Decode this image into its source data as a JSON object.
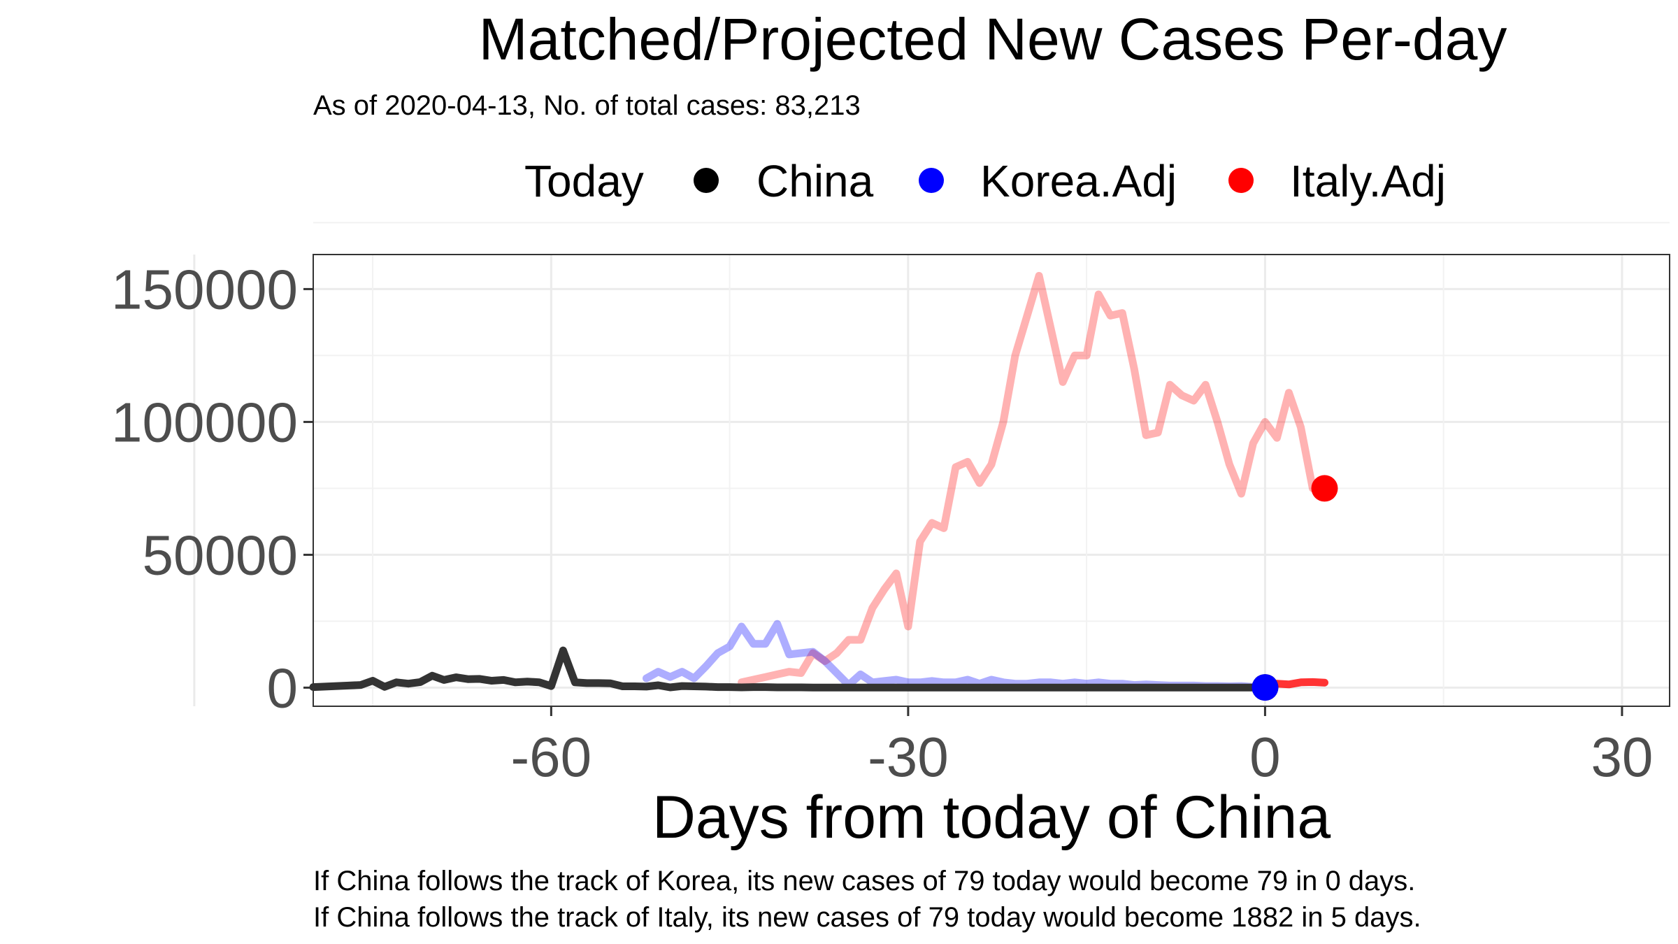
{
  "chart_data": {
    "type": "line",
    "title": "Matched/Projected New Cases Per-day",
    "subtitle": "As of 2020-04-13, No. of total cases: 83,213",
    "xlabel": "Days from today of China",
    "ylabel": "",
    "xlim": [
      -80,
      34
    ],
    "ylim": [
      -7000,
      163000
    ],
    "x_ticks": [
      -60,
      -30,
      0,
      30
    ],
    "x_tick_labels": [
      "-60",
      "-30",
      "0",
      "30"
    ],
    "y_ticks": [
      0,
      50000,
      100000,
      150000
    ],
    "y_tick_labels": [
      "0",
      "50000",
      "100000",
      "150000"
    ],
    "grid": true,
    "legend": {
      "position": "top",
      "title": "Today",
      "entries": [
        {
          "label": "China",
          "color": "#000000"
        },
        {
          "label": "Korea.Adj",
          "color": "#0000ff"
        },
        {
          "label": "Italy.Adj",
          "color": "#ff0000"
        }
      ]
    },
    "series": [
      {
        "name": "China",
        "color": "#333333",
        "x": [
          -80,
          -79,
          -78,
          -77,
          -76,
          -75,
          -74,
          -73,
          -72,
          -71,
          -70,
          -69,
          -68,
          -67,
          -66,
          -65,
          -64,
          -63,
          -62,
          -61,
          -60,
          -59,
          -58,
          -57,
          -56,
          -55,
          -54,
          -53,
          -52,
          -51,
          -50,
          -49,
          -48,
          -47,
          -46,
          -45,
          -44,
          -43,
          -42,
          -41,
          -40,
          -39,
          -38,
          -37,
          -36,
          -35,
          -34,
          -33,
          -32,
          -31,
          -30,
          -29,
          -28,
          -27,
          -26,
          -25,
          -24,
          -23,
          -22,
          -21,
          -20,
          -19,
          -18,
          -17,
          -16,
          -15,
          -14,
          -13,
          -12,
          -11,
          -10,
          -9,
          -8,
          -7,
          -6,
          -5,
          -4,
          -3,
          -2,
          -1,
          0
        ],
        "y": [
          200,
          400,
          600,
          800,
          1000,
          2600,
          300,
          2000,
          1500,
          2100,
          4500,
          2900,
          3900,
          3200,
          3300,
          2600,
          2900,
          2000,
          2300,
          2000,
          600,
          14000,
          2000,
          1700,
          1700,
          1600,
          500,
          500,
          400,
          900,
          100,
          600,
          500,
          400,
          200,
          200,
          100,
          200,
          200,
          100,
          100,
          100,
          50,
          50,
          50,
          50,
          50,
          30,
          30,
          30,
          30,
          30,
          30,
          30,
          30,
          30,
          30,
          30,
          30,
          30,
          30,
          30,
          30,
          30,
          30,
          30,
          30,
          30,
          30,
          30,
          30,
          30,
          30,
          30,
          30,
          30,
          30,
          30,
          30,
          30,
          79
        ]
      },
      {
        "name": "Korea.Adj",
        "color": "#0000ff",
        "opacity": 0.32,
        "x": [
          -52,
          -51,
          -50,
          -49,
          -48,
          -47,
          -46,
          -45,
          -44,
          -43,
          -42,
          -41,
          -40,
          -39,
          -38,
          -37,
          -36,
          -35,
          -34,
          -33,
          -32,
          -31,
          -30,
          -29,
          -28,
          -27,
          -26,
          -25,
          -24,
          -23,
          -22,
          -21,
          -20,
          -19,
          -18,
          -17,
          -16,
          -15,
          -14,
          -13,
          -12,
          -11,
          -10,
          -9,
          -8,
          -7,
          -6,
          -5,
          -4,
          -3,
          -2,
          -1,
          0
        ],
        "y": [
          3500,
          6000,
          4000,
          6000,
          3500,
          8000,
          13000,
          15500,
          23000,
          16500,
          16500,
          24000,
          12500,
          13000,
          13500,
          10000,
          5500,
          1000,
          5000,
          2000,
          2500,
          3000,
          2000,
          2000,
          2500,
          2000,
          2000,
          3000,
          1500,
          3000,
          2000,
          1500,
          1500,
          2000,
          2000,
          1500,
          2000,
          1500,
          2000,
          1500,
          1500,
          1000,
          1200,
          1000,
          800,
          800,
          800,
          600,
          600,
          500,
          600,
          300,
          79
        ]
      },
      {
        "name": "Italy.Adj",
        "color": "#ff0000",
        "opacity": 0.3,
        "x": [
          -44,
          -43,
          -42,
          -41,
          -40,
          -39,
          -38,
          -37,
          -36,
          -35,
          -34,
          -33,
          -32,
          -31,
          -30,
          -29,
          -28,
          -27,
          -26,
          -25,
          -24,
          -23,
          -22,
          -21,
          -20,
          -19,
          -18,
          -17,
          -16,
          -15,
          -14,
          -13,
          -12,
          -11,
          -10,
          -9,
          -8,
          -7,
          -6,
          -5,
          -4,
          -3,
          -2,
          -1,
          0,
          1,
          2,
          3,
          4,
          5
        ],
        "y": [
          2000,
          3000,
          4000,
          5000,
          6000,
          5500,
          13000,
          10000,
          13000,
          18000,
          18000,
          30000,
          37000,
          43000,
          23000,
          55000,
          62000,
          60000,
          83000,
          85000,
          77000,
          84000,
          100000,
          125000,
          140000,
          155000,
          135000,
          115000,
          125000,
          125000,
          148000,
          140000,
          141000,
          120000,
          95000,
          96000,
          114000,
          110000,
          108000,
          114000,
          100000,
          84000,
          73000,
          92000,
          100000,
          94000,
          111000,
          98000,
          75000,
          75000
        ]
      },
      {
        "name": "Italy.Adj.projection",
        "color": "#ff0000",
        "opacity": 0.8,
        "x": [
          0,
          1,
          2,
          3,
          4,
          5
        ],
        "y": [
          1000,
          1500,
          1200,
          2000,
          2100,
          1882
        ]
      }
    ],
    "today_points": [
      {
        "name": "China",
        "x": 0,
        "y": 79,
        "color": "#000000"
      },
      {
        "name": "Korea.Adj",
        "x": 0,
        "y": 79,
        "color": "#0000ff"
      },
      {
        "name": "Italy.Adj",
        "x": 5,
        "y": 75000,
        "color": "#ff0000"
      }
    ],
    "captions": [
      "If China follows the track of Korea, its new cases of 79 today would become 79 in 0 days.",
      "If China follows the track of Italy, its new cases of 79 today would become 1882 in 5 days."
    ]
  }
}
